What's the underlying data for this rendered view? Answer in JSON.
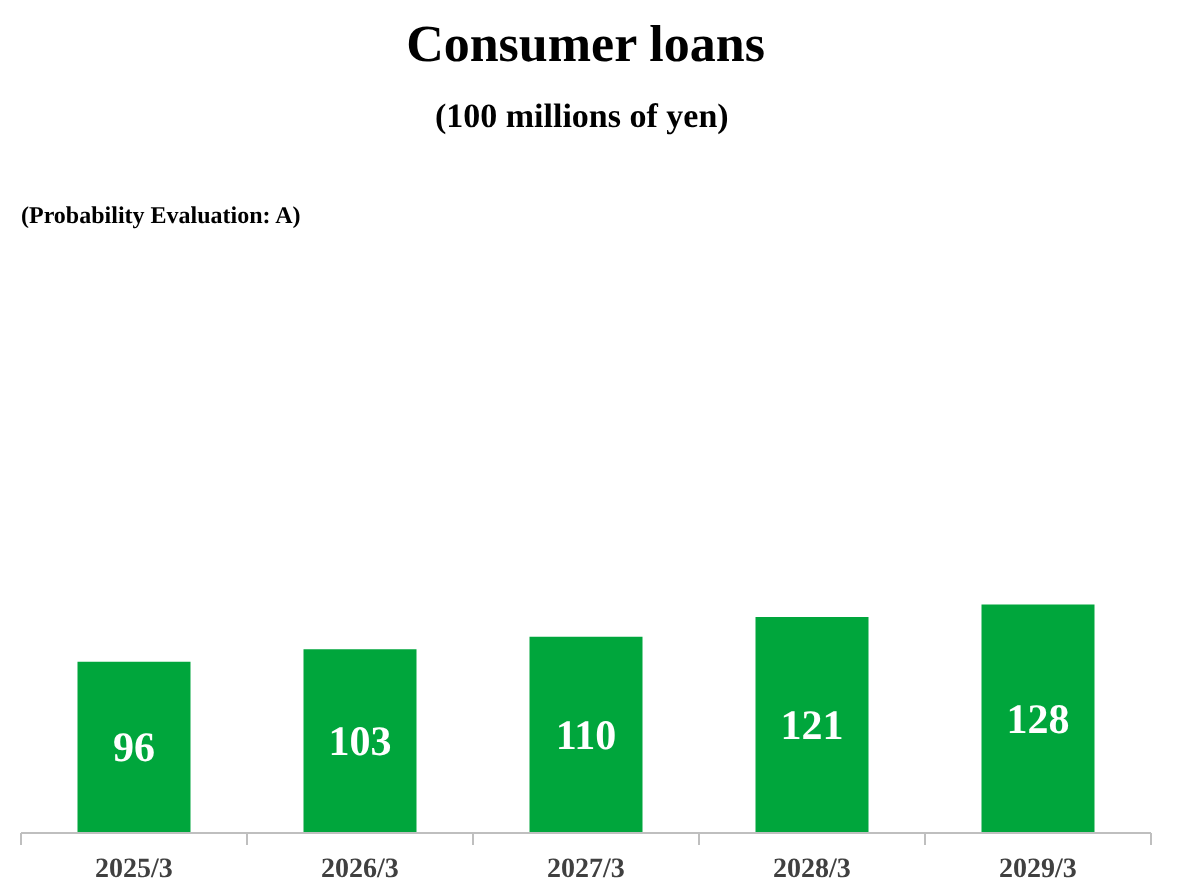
{
  "chart_data": {
    "type": "bar",
    "title": "Consumer loans",
    "subtitle": "(100  millions of yen)",
    "annotations": [
      "(Probability Evaluation: A)"
    ],
    "categories": [
      "2025/3",
      "2026/3",
      "2027/3",
      "2028/3",
      "2029/3"
    ],
    "values": [
      96,
      103,
      110,
      121,
      128
    ],
    "color": "#00a63c",
    "data_labels": true,
    "grid": false,
    "tick_labels": "x"
  }
}
